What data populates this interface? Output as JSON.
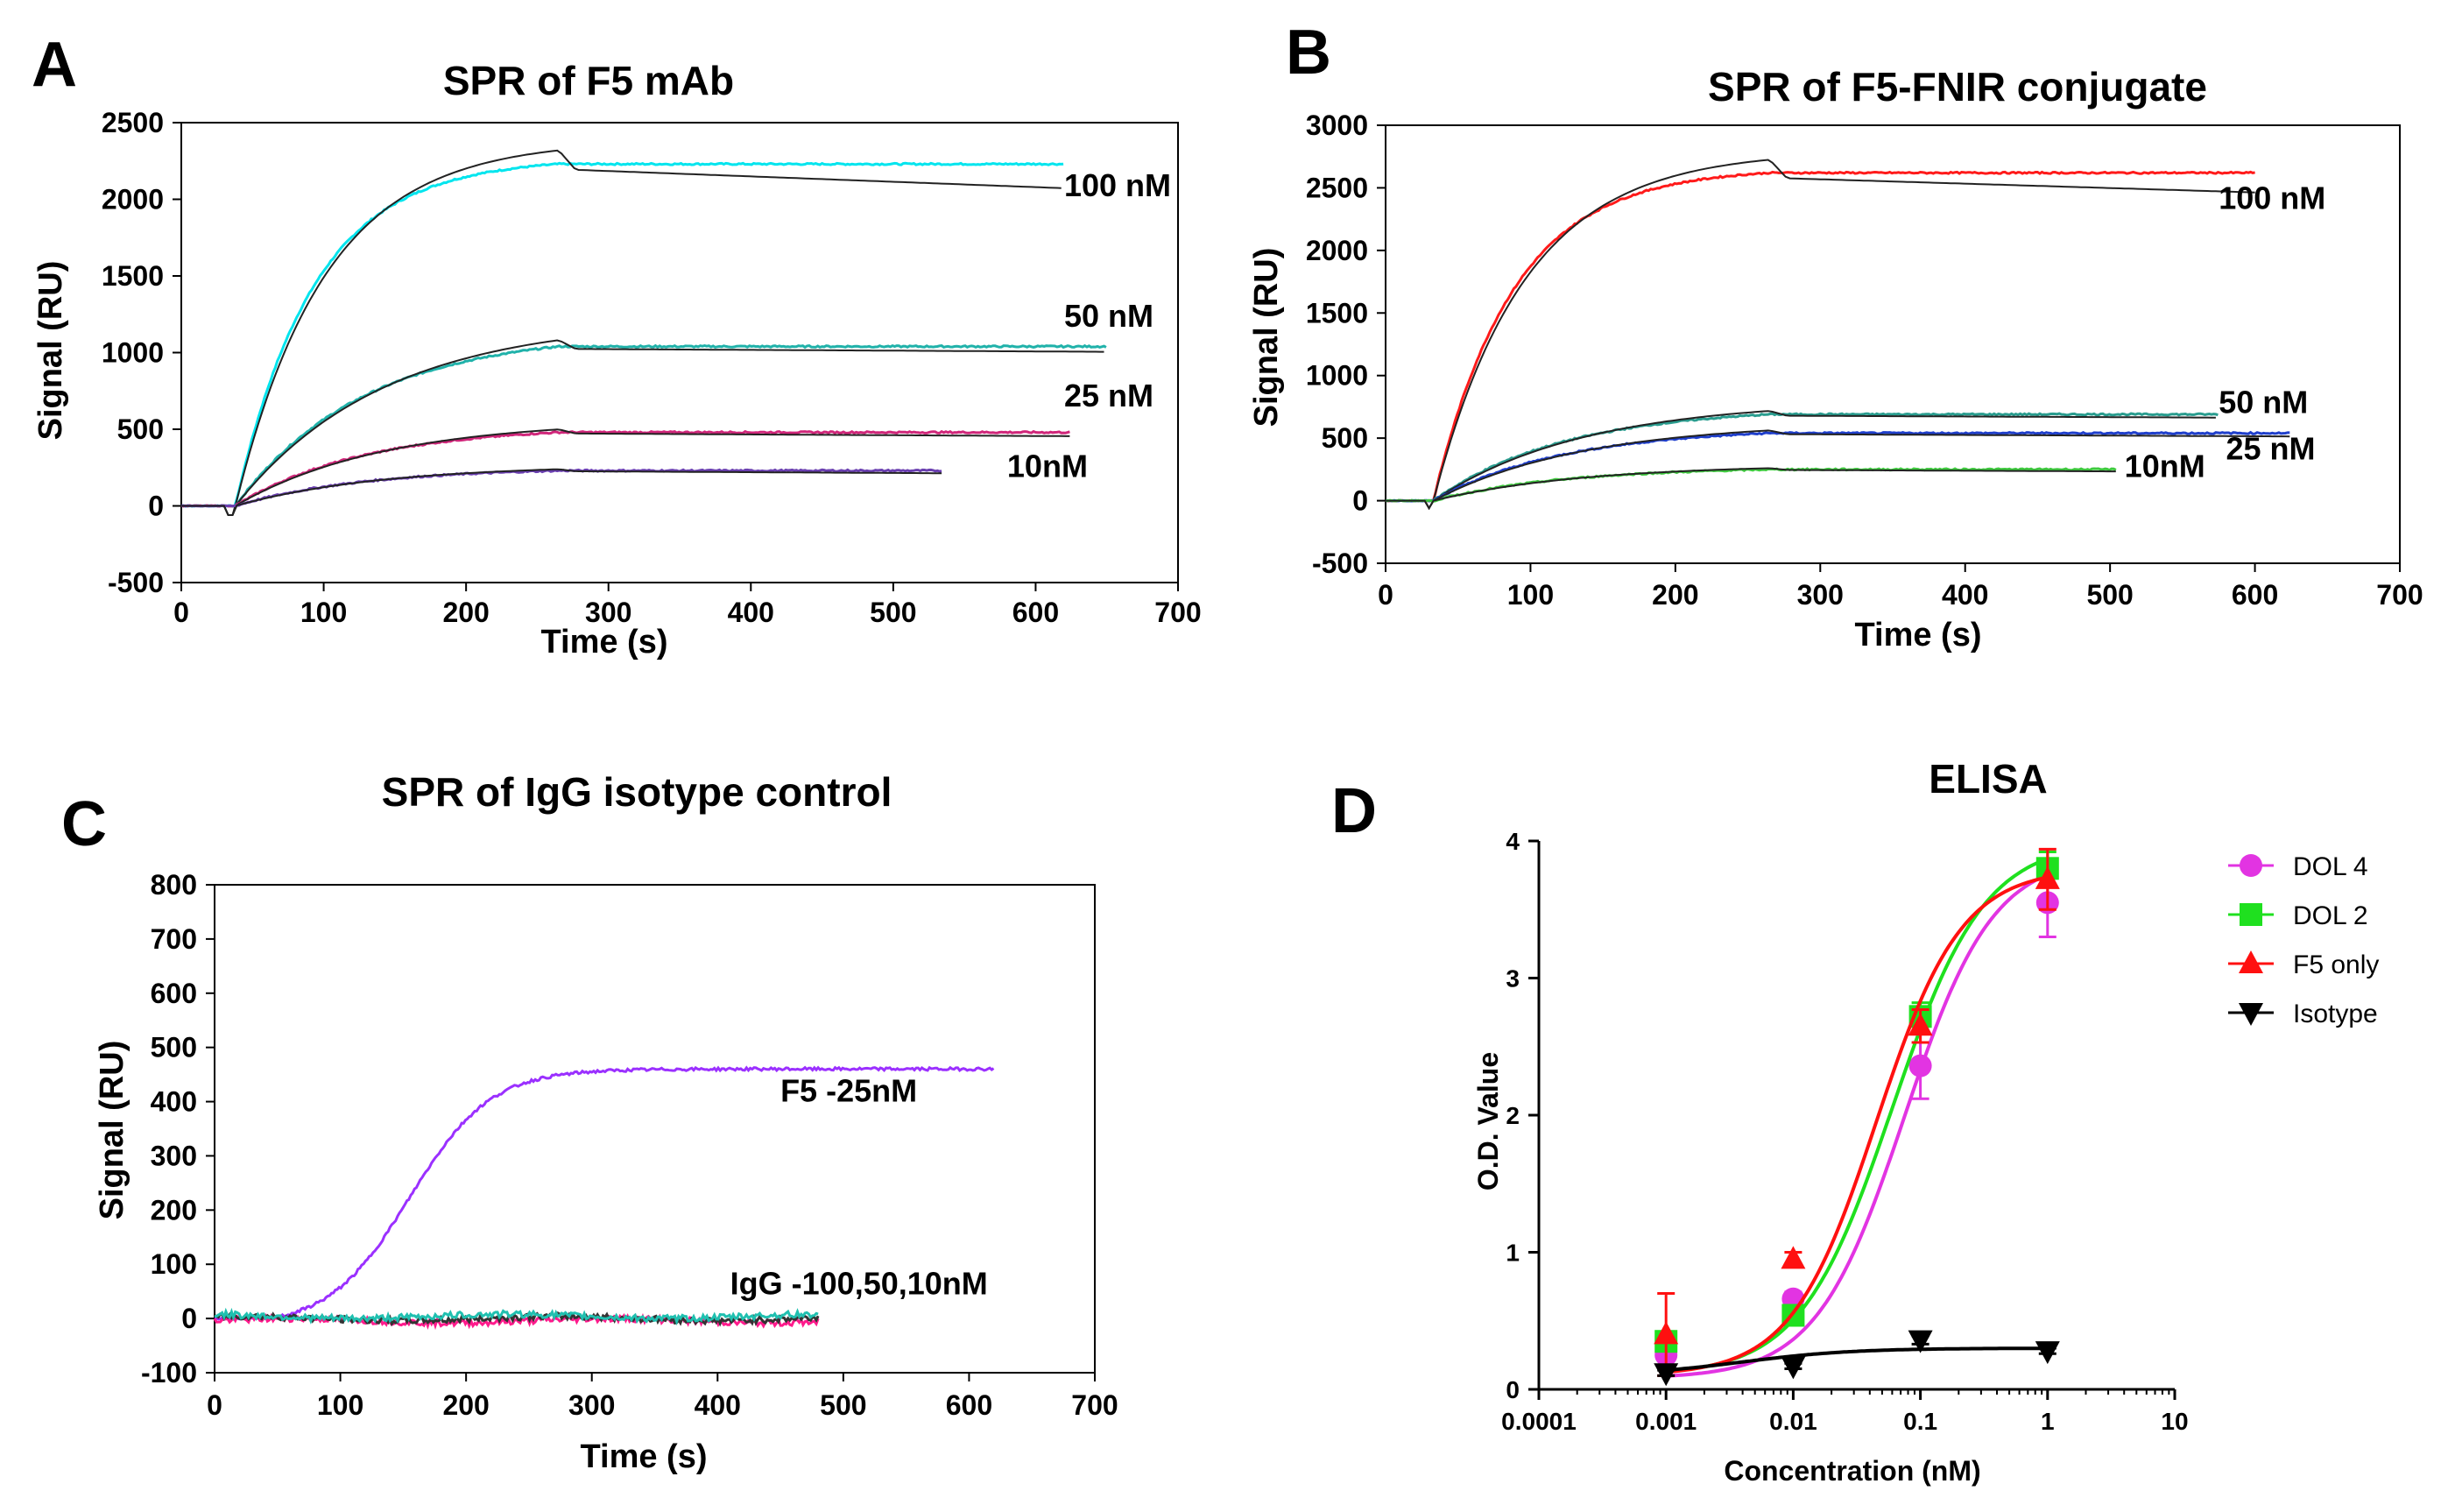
{
  "chart_data": [
    {
      "panel": "A",
      "type": "line",
      "title": "SPR of F5 mAb",
      "xlabel": "Time (s)",
      "ylabel": "Signal (RU)",
      "xlim": [
        0,
        700
      ],
      "ylim": [
        -500,
        2500
      ],
      "xticks": [
        "0",
        "100",
        "200",
        "300",
        "400",
        "500",
        "600",
        "700"
      ],
      "yticks": [
        "2500",
        "2000",
        "1500",
        "1000",
        "500",
        "0",
        "-500"
      ],
      "association_start": 38,
      "dissociation_start": 265,
      "series": [
        {
          "name": "100 nM",
          "color": "#00e5ee",
          "plateau": 2230,
          "end": 620
        },
        {
          "name": "50 nM",
          "color": "#20b2aa",
          "plateau": 1040,
          "end": 650
        },
        {
          "name": "25 nM",
          "color": "#d0267a",
          "plateau": 480,
          "end": 625
        },
        {
          "name": "10nM",
          "color": "#6a3fb0",
          "plateau": 230,
          "end": 535
        }
      ],
      "labels": [
        {
          "text": "100 nM",
          "x": 620,
          "y": 2020
        },
        {
          "text": "50 nM",
          "x": 620,
          "y": 1170
        },
        {
          "text": "25 nM",
          "x": 620,
          "y": 650
        },
        {
          "text": "10nM",
          "x": 580,
          "y": 190
        }
      ]
    },
    {
      "panel": "B",
      "type": "line",
      "title": "SPR of F5-FNIR conjugate",
      "xlabel": "Time (s)",
      "ylabel": "Signal (RU)",
      "xlim": [
        0,
        700
      ],
      "ylim": [
        -500,
        3000
      ],
      "xticks": [
        "0",
        "100",
        "200",
        "300",
        "400",
        "500",
        "600",
        "700"
      ],
      "yticks": [
        "3000",
        "2500",
        "2000",
        "1500",
        "1000",
        "500",
        "0",
        "-500"
      ],
      "association_start": 33,
      "dissociation_start": 265,
      "series": [
        {
          "name": "100 nM",
          "color": "#ff1a1a",
          "plateau": 2620,
          "end": 600
        },
        {
          "name": "50 nM",
          "color": "#2a9d8f",
          "plateau": 690,
          "end": 575
        },
        {
          "name": "25 nM",
          "color": "#1f3fcc",
          "plateau": 540,
          "end": 625
        },
        {
          "name": "10nM",
          "color": "#3ec93e",
          "plateau": 250,
          "end": 505
        }
      ],
      "labels": [
        {
          "text": "100 nM",
          "x": 575,
          "y": 2330
        },
        {
          "text": "50 nM",
          "x": 575,
          "y": 700
        },
        {
          "text": "25 nM",
          "x": 580,
          "y": 330
        },
        {
          "text": "10nM",
          "x": 510,
          "y": 190
        }
      ]
    },
    {
      "panel": "C",
      "type": "line",
      "title": "SPR of IgG isotype control",
      "xlabel": "Time (s)",
      "ylabel": "Signal (RU)",
      "xlim": [
        0,
        700
      ],
      "ylim": [
        -100,
        800
      ],
      "xticks": [
        "0",
        "100",
        "200",
        "300",
        "400",
        "500",
        "600",
        "700"
      ],
      "yticks": [
        "800",
        "700",
        "600",
        "500",
        "400",
        "300",
        "200",
        "100",
        "0",
        "-100"
      ],
      "series": [
        {
          "name": "F5 -25nM",
          "color": "#9b30ff",
          "plateau": 475,
          "start": 45,
          "end": 620
        },
        {
          "name": "IgG -100,50,10nM",
          "colors": [
            "#ff1a8c",
            "#333333",
            "#20c0b0"
          ],
          "plateau": 0,
          "end": 480
        }
      ],
      "labels": [
        {
          "text": "F5 -25nM",
          "x": 450,
          "y": 400
        },
        {
          "text": "IgG -100,50,10nM",
          "x": 410,
          "y": 45
        }
      ]
    },
    {
      "panel": "D",
      "type": "scatter",
      "title": "ELISA",
      "xlabel": "Concentration (nM)",
      "ylabel": "O.D. Value",
      "xscale": "log",
      "xlim": [
        0.0001,
        10
      ],
      "ylim": [
        0,
        4
      ],
      "xticks": [
        "0.0001",
        "0.001",
        "0.01",
        "0.1",
        "1",
        "10"
      ],
      "yticks": [
        "0",
        "1",
        "2",
        "3",
        "4"
      ],
      "x": [
        0.001,
        0.01,
        0.1,
        1
      ],
      "series": [
        {
          "name": "DOL 4",
          "color": "#e234e2",
          "marker": "circle",
          "values": [
            0.25,
            0.66,
            2.36,
            3.55
          ],
          "err": [
            0.08,
            0.05,
            0.24,
            0.25
          ],
          "fit": {
            "bottom": 0.08,
            "top": 3.9,
            "ec50": 0.075,
            "hill": 1.25
          }
        },
        {
          "name": "DOL 2",
          "color": "#1fe01f",
          "marker": "square",
          "values": [
            0.35,
            0.54,
            2.72,
            3.8
          ],
          "err": [
            0.06,
            0.04,
            0.1,
            0.12
          ],
          "fit": {
            "bottom": 0.1,
            "top": 4.0,
            "ec50": 0.06,
            "hill": 1.2
          }
        },
        {
          "name": "F5 only",
          "color": "#ff1010",
          "marker": "triangle-up",
          "values": [
            0.4,
            0.95,
            2.65,
            3.72
          ],
          "err": [
            0.3,
            0.05,
            0.12,
            0.22
          ],
          "fit": {
            "bottom": 0.1,
            "top": 3.8,
            "ec50": 0.045,
            "hill": 1.3
          }
        },
        {
          "name": "Isotype",
          "color": "#000000",
          "marker": "triangle-down",
          "values": [
            0.12,
            0.17,
            0.36,
            0.28
          ],
          "err": [
            0.02,
            0.02,
            0.03,
            0.02
          ],
          "fit": {
            "bottom": 0.1,
            "top": 0.3,
            "ec50": 0.004,
            "hill": 1.0
          }
        }
      ],
      "legend": "right"
    }
  ]
}
